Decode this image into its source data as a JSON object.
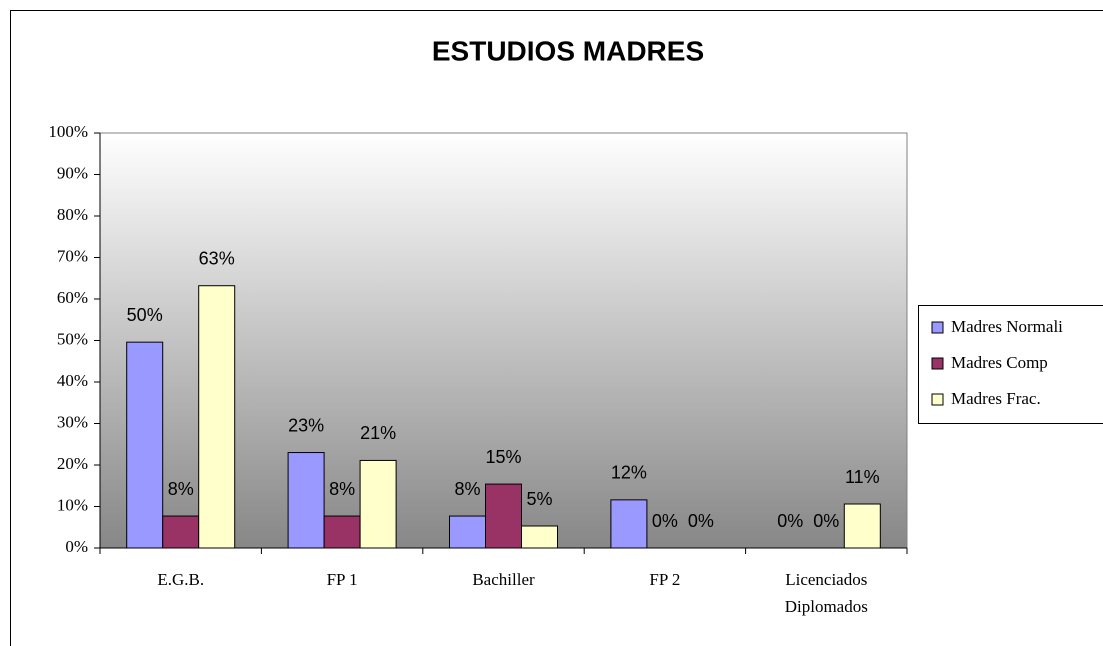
{
  "chart_data": {
    "type": "bar",
    "title": "ESTUDIOS MADRES",
    "categories": [
      "E.G.B.",
      "FP 1",
      "Bachiller",
      "FP 2",
      "Licenciados Diplomados"
    ],
    "series": [
      {
        "name": "Madres Normali",
        "color": "#9999ff",
        "values": [
          49.6,
          23,
          7.7,
          11.6,
          0
        ],
        "value_labels": [
          "50%",
          "23%",
          "8%",
          "12%",
          "0%"
        ]
      },
      {
        "name": "Madres Comp",
        "color": "#993366",
        "values": [
          7.7,
          7.7,
          15.4,
          0,
          0
        ],
        "value_labels": [
          "8%",
          "8%",
          "15%",
          "0%",
          "0%"
        ]
      },
      {
        "name": "Madres Frac.",
        "color": "#ffffcc",
        "values": [
          63.2,
          21.1,
          5.3,
          0,
          10.6
        ],
        "value_labels": [
          "63%",
          "21%",
          "5%",
          "0%",
          "11%"
        ]
      }
    ],
    "ylim": [
      0,
      100
    ],
    "yticks": [
      {
        "value": 0,
        "label": "0%"
      },
      {
        "value": 10,
        "label": "10%"
      },
      {
        "value": 20,
        "label": "20%"
      },
      {
        "value": 30,
        "label": "30%"
      },
      {
        "value": 40,
        "label": "40%"
      },
      {
        "value": 50,
        "label": "50%"
      },
      {
        "value": 60,
        "label": "60%"
      },
      {
        "value": 70,
        "label": "70%"
      },
      {
        "value": 80,
        "label": "80%"
      },
      {
        "value": 90,
        "label": "90%"
      },
      {
        "value": 100,
        "label": "100%"
      }
    ],
    "grid": false,
    "legend": "right"
  }
}
